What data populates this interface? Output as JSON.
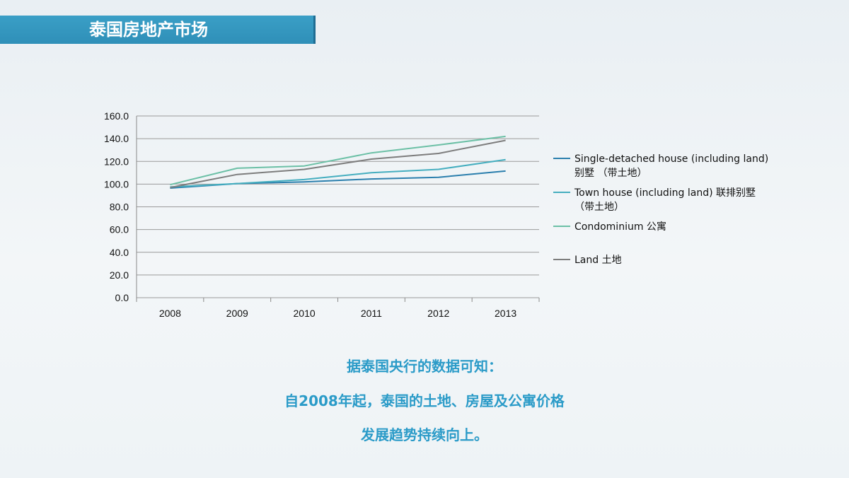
{
  "header": {
    "title": "泰国房地产市场"
  },
  "chart_data": {
    "type": "line",
    "categories": [
      "2008",
      "2009",
      "2010",
      "2011",
      "2012",
      "2013"
    ],
    "ylim": [
      0,
      160
    ],
    "ytick_labels": [
      "0.0",
      "20.0",
      "40.0",
      "60.0",
      "80.0",
      "100.0",
      "120.0",
      "140.0",
      "160.0"
    ],
    "grid": true,
    "legend_position": "right",
    "series": [
      {
        "name": "Single-detached house (including land) 别墅 （带土地）",
        "legend_lines": [
          "Single-detached house (including land)",
          "别墅 （带土地）"
        ],
        "color": "#2b7fad",
        "values": [
          96.5,
          100.5,
          102,
          104.5,
          106,
          111.5
        ]
      },
      {
        "name": "Town house (including land) 联排别墅 （带土地）",
        "legend_lines": [
          "Town house (including land) 联排别墅",
          "（带土地）"
        ],
        "color": "#45aebf",
        "values": [
          97.5,
          100.5,
          104,
          110,
          113,
          121.5
        ]
      },
      {
        "name": "Condominium 公寓",
        "legend_lines": [
          "Condominium 公寓"
        ],
        "color": "#6cc0a6",
        "values": [
          99.5,
          114,
          116,
          127.5,
          134.5,
          142
        ]
      },
      {
        "name": "Land 土地",
        "legend_lines": [
          "Land 土地"
        ],
        "color": "#7d7d7d",
        "values": [
          97,
          108.5,
          113,
          122,
          127,
          138.5
        ]
      }
    ]
  },
  "caption": {
    "line1": "据泰国央行的数据可知：",
    "line2": "自2008年起，泰国的土地、房屋及公寓价格",
    "line3": "发展趋势持续向上。"
  }
}
